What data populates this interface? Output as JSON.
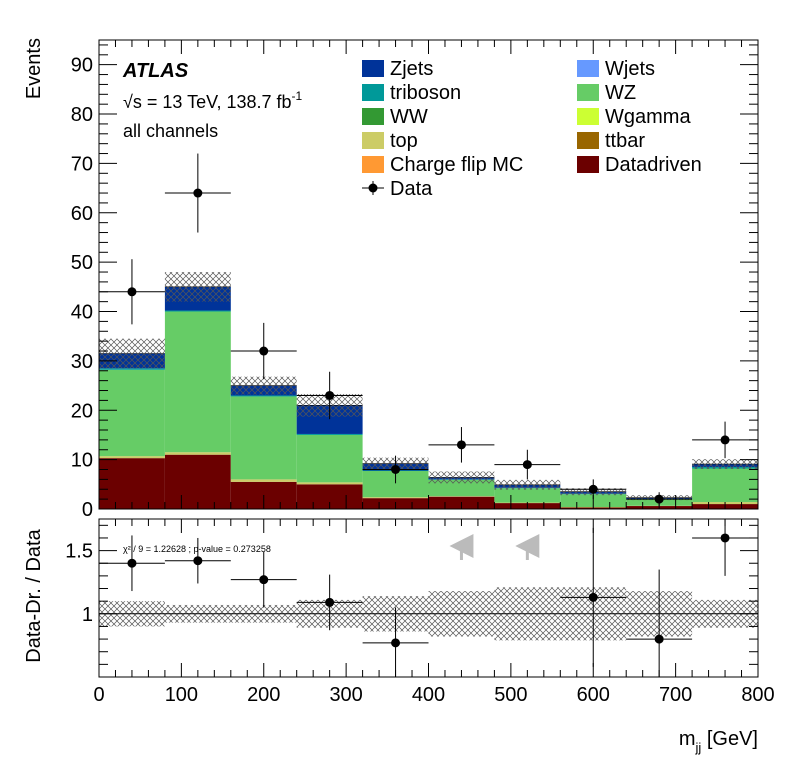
{
  "chart_data": {
    "type": "bar",
    "stacked": true,
    "x_edges": [
      0,
      80,
      160,
      240,
      320,
      400,
      480,
      560,
      640,
      720,
      800
    ],
    "xlabel_main": "m",
    "xlabel_sub": "jj",
    "xlabel_unit": " [GeV]",
    "ylabel": "Events",
    "ylim": [
      0,
      95
    ],
    "yticks": [
      0,
      10,
      20,
      30,
      40,
      50,
      60,
      70,
      80,
      90
    ],
    "xticks": [
      0,
      100,
      200,
      300,
      400,
      500,
      600,
      700,
      800
    ],
    "atlas_label": "ATLAS",
    "energy_sqrt": "√s",
    "energy_text": " = 13 TeV, 138.7 fb",
    "energy_sup": "-1",
    "channel_label": "all channels",
    "series": [
      {
        "name": "Datadriven",
        "color": "#6b0000",
        "values": [
          10.3,
          11.0,
          5.5,
          5.0,
          2.2,
          2.5,
          1.2,
          0.3,
          0.6,
          1.0
        ]
      },
      {
        "name": "Charge flip MC",
        "color": "#ff9933",
        "values": [
          0,
          0,
          0,
          0,
          0,
          0,
          0,
          0,
          0,
          0
        ]
      },
      {
        "name": "ttbar",
        "color": "#996600",
        "values": [
          0,
          0,
          0,
          0,
          0,
          0,
          0,
          0,
          0,
          0
        ]
      },
      {
        "name": "top",
        "color": "#cccc66",
        "values": [
          0.4,
          0.5,
          0.5,
          0.4,
          0.2,
          0.1,
          0.1,
          0.1,
          0.05,
          0.4
        ]
      },
      {
        "name": "Wgamma",
        "color": "#ccff33",
        "values": [
          0,
          0,
          0,
          0,
          0,
          0,
          0,
          0,
          0,
          0
        ]
      },
      {
        "name": "WW",
        "color": "#339933",
        "values": [
          0,
          0,
          0,
          0,
          0,
          0,
          0,
          0,
          0,
          0
        ]
      },
      {
        "name": "WZ",
        "color": "#66cc66",
        "values": [
          17.5,
          28.5,
          16.8,
          9.6,
          5.3,
          3.3,
          2.9,
          2.6,
          1.3,
          6.8
        ]
      },
      {
        "name": "triboson",
        "color": "#009999",
        "values": [
          0.3,
          0.2,
          0.2,
          0.2,
          0.1,
          0.1,
          0.1,
          0.1,
          0.05,
          0.3
        ]
      },
      {
        "name": "Wjets",
        "color": "#6699ff",
        "values": [
          0,
          0,
          0,
          0,
          0,
          0,
          0,
          0,
          0,
          0
        ]
      },
      {
        "name": "Zjets",
        "color": "#003399",
        "values": [
          3.0,
          4.8,
          2.0,
          5.8,
          1.4,
          0.4,
          0.6,
          0.4,
          0.3,
          0.6
        ]
      }
    ],
    "mc_uncertainty": [
      3.0,
      3.0,
      1.8,
      2.3,
      1.2,
      1.2,
      1.0,
      0.7,
      0.5,
      1.0
    ],
    "data": {
      "name": "Data",
      "values": [
        44,
        64,
        32,
        23,
        8,
        13,
        9,
        4,
        2,
        14
      ],
      "errors": [
        6.6,
        8.0,
        5.7,
        4.8,
        2.8,
        3.6,
        3.0,
        2.0,
        1.4,
        3.7
      ]
    },
    "legend_left": [
      "Zjets",
      "triboson",
      "WW",
      "top",
      "Charge flip MC"
    ],
    "legend_right": [
      "Wjets",
      "WZ",
      "Wgamma",
      "ttbar",
      "Datadriven"
    ],
    "ratio": {
      "ylabel": "Data-Dr. / Data",
      "ylim": [
        0.5,
        1.75
      ],
      "yticks": [
        1,
        1.5
      ],
      "values": [
        1.4,
        1.42,
        1.27,
        1.09,
        0.77,
        null,
        null,
        1.13,
        0.8,
        1.6
      ],
      "errors": [
        0.22,
        0.18,
        0.22,
        0.22,
        0.28,
        null,
        null,
        0.55,
        0.55,
        0.3
      ],
      "uncertainty": [
        0.1,
        0.07,
        0.07,
        0.11,
        0.14,
        0.18,
        0.21,
        0.21,
        0.18,
        0.11
      ],
      "offscale_arrows": [
        5,
        6
      ],
      "stat_text": "χ² / 9 = 1.22628 ; p-value = 0.273258"
    }
  }
}
